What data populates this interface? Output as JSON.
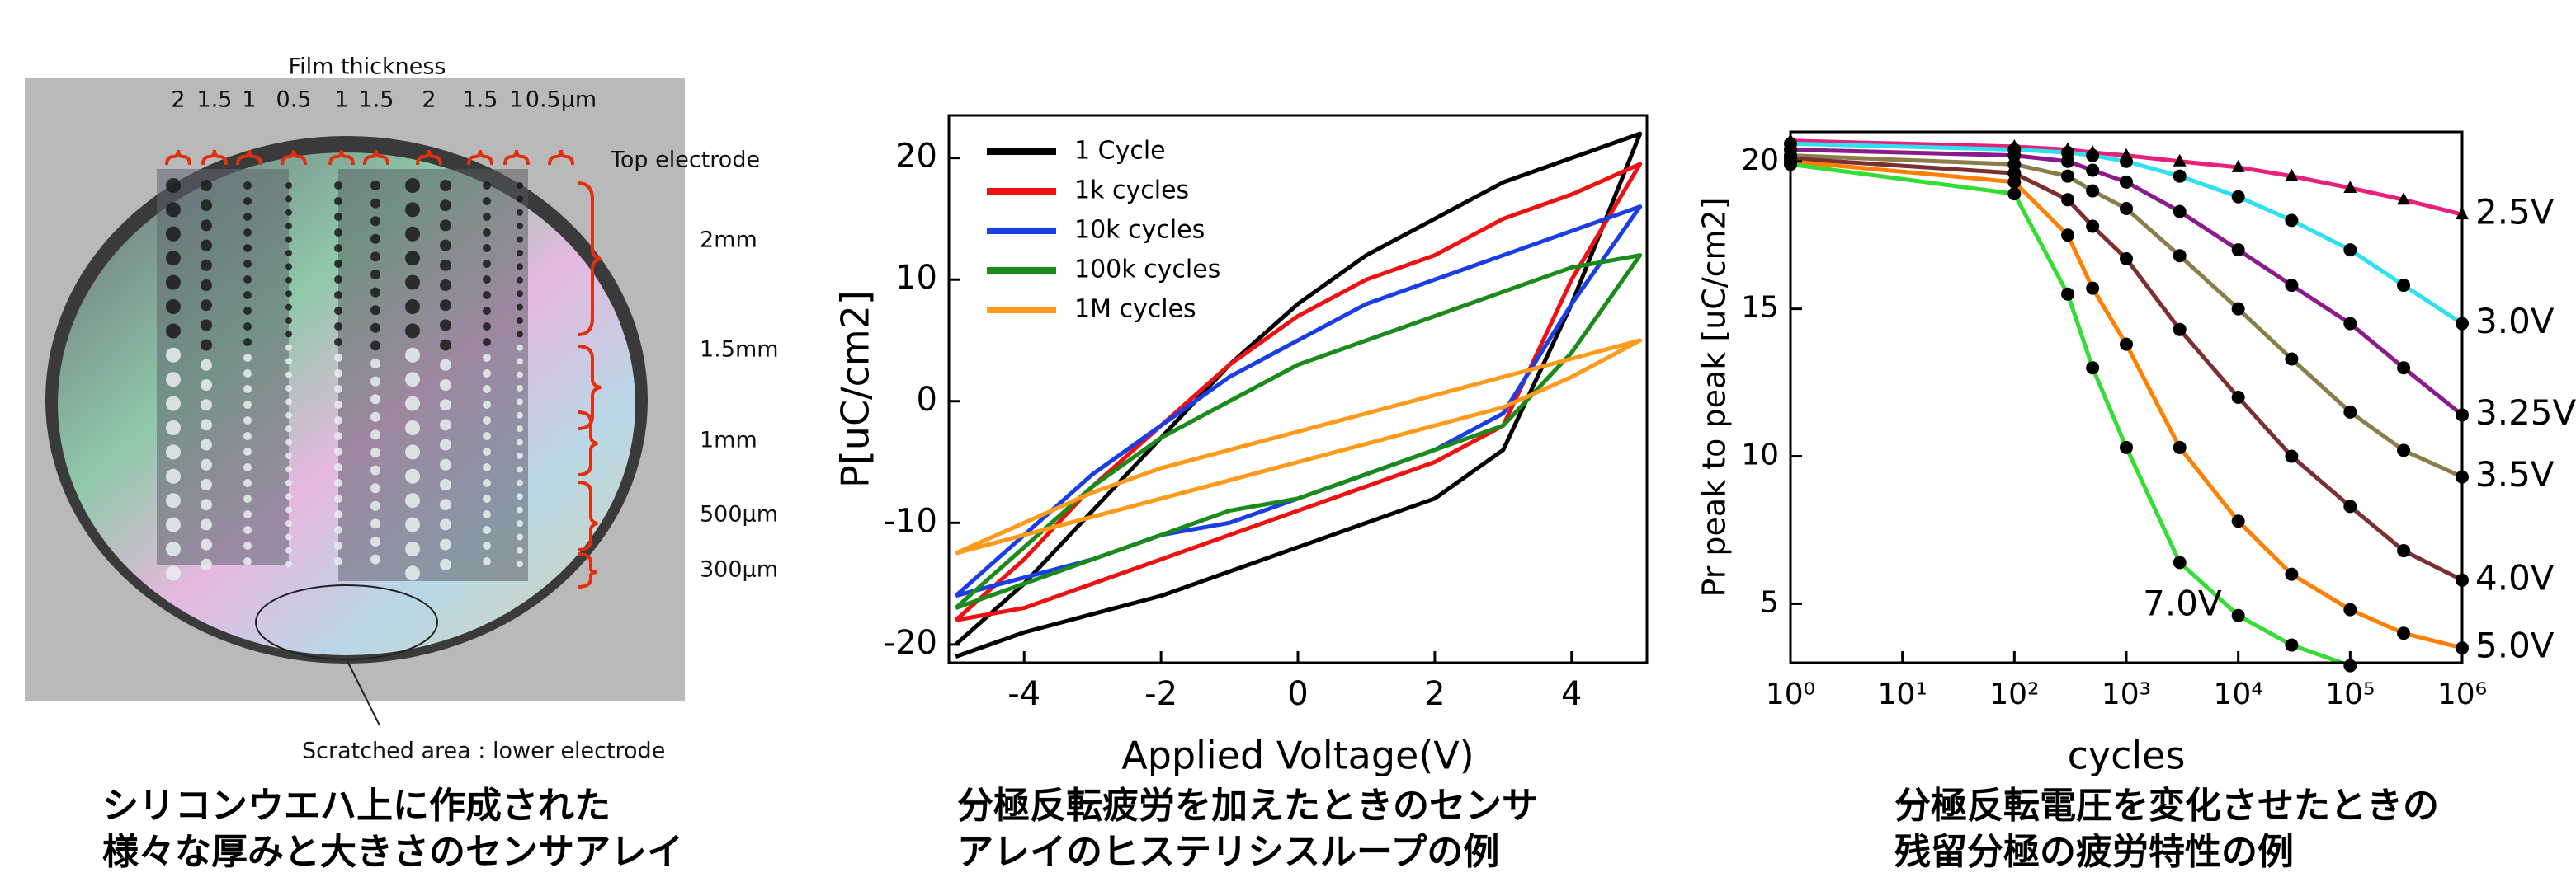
{
  "photo": {
    "title": "Film thickness",
    "thickness_labels": [
      "2",
      "1.5",
      "1",
      "0.5",
      "1",
      "1.5",
      "2",
      "1.5",
      "1",
      "0.5µm"
    ],
    "top_electrode": "Top electrode",
    "size_labels": [
      "2mm",
      "1.5mm",
      "1mm",
      "500µm",
      "300µm"
    ],
    "scratch_note": "Scratched area : lower electrode"
  },
  "chart_data": [
    {
      "type": "line",
      "xlabel": "Applied Voltage(V)",
      "ylabel": "P[uC/cm2]",
      "xlim": [
        -5.1,
        5.1
      ],
      "ylim": [
        -21.5,
        23.5
      ],
      "xticks": [
        -4,
        -2,
        0,
        2,
        4
      ],
      "yticks": [
        -20,
        -10,
        0,
        10,
        20
      ],
      "legend": "upper left",
      "x": [
        -5,
        -4,
        -3,
        -2,
        -1,
        0,
        1,
        2,
        3,
        4,
        5,
        4,
        3,
        2,
        1,
        0,
        -1,
        -2,
        -3,
        -4,
        -5
      ],
      "series": [
        {
          "name": "1 Cycle",
          "color": "#000000",
          "values": [
            -21,
            -19,
            -17.5,
            -16,
            -14,
            -12,
            -10,
            -8,
            -4,
            8,
            22,
            20,
            18,
            15,
            12,
            8,
            3,
            -3,
            -9,
            -15,
            -20
          ]
        },
        {
          "name": "1k  cycles",
          "color": "#ee1111",
          "values": [
            -18,
            -17,
            -15,
            -13,
            -11,
            -9,
            -7,
            -5,
            -2,
            10,
            19.5,
            17,
            15,
            12,
            10,
            7,
            3,
            -2,
            -7,
            -13,
            -18
          ]
        },
        {
          "name": "10k cycles",
          "color": "#1a3ee6",
          "values": [
            -16,
            -14.5,
            -13,
            -11,
            -10,
            -8,
            -6,
            -4,
            -1,
            8,
            16,
            14,
            12,
            10,
            8,
            5,
            2,
            -2,
            -6,
            -11,
            -16
          ]
        },
        {
          "name": "100k cycles",
          "color": "#1a8a1a",
          "values": [
            -17,
            -15,
            -13,
            -11,
            -9,
            -8,
            -6,
            -4,
            -2,
            4,
            12,
            11,
            9,
            7,
            5,
            3,
            0,
            -3,
            -7,
            -12,
            -17
          ]
        },
        {
          "name": "1M cycles",
          "color": "#ff9a1a",
          "values": [
            -12.5,
            -11,
            -9.5,
            -8,
            -6.5,
            -5,
            -3.5,
            -2,
            -0.5,
            2,
            5,
            3.5,
            2,
            0.5,
            -1,
            -2.5,
            -4,
            -5.5,
            -7.5,
            -10,
            -12.5
          ]
        }
      ]
    },
    {
      "type": "line",
      "xlabel": "cycles",
      "ylabel": "Pr peak to peak [uC/cm2]",
      "xscale": "log",
      "xlim": [
        1,
        1000000
      ],
      "ylim": [
        3,
        21
      ],
      "xticks": [
        {
          "value": 1,
          "label": "10⁰"
        },
        {
          "value": 10,
          "label": "10¹"
        },
        {
          "value": 100,
          "label": "10²"
        },
        {
          "value": 1000,
          "label": "10³"
        },
        {
          "value": 10000,
          "label": "10⁴"
        },
        {
          "value": 100000,
          "label": "10⁵"
        },
        {
          "value": 1000000,
          "label": "10⁶"
        }
      ],
      "yticks": [
        5,
        10,
        15,
        20
      ],
      "end_labels": true,
      "series": [
        {
          "name": "2.5V",
          "color": "#e8207a",
          "marker": "triangle",
          "x": [
            1,
            100,
            300,
            500,
            1000,
            3000,
            10000,
            30000,
            100000,
            300000,
            1000000
          ],
          "values": [
            20.7,
            20.5,
            20.4,
            20.3,
            20.2,
            20,
            19.8,
            19.5,
            19.1,
            18.7,
            18.2
          ]
        },
        {
          "name": "3.0V",
          "color": "#2ee0f0",
          "marker": "circle",
          "x": [
            1,
            100,
            300,
            500,
            1000,
            3000,
            10000,
            30000,
            100000,
            300000,
            1000000
          ],
          "values": [
            20.6,
            20.4,
            20.3,
            20.2,
            20,
            19.5,
            18.8,
            18,
            17,
            15.8,
            14.5
          ]
        },
        {
          "name": "3.25V",
          "color": "#8b1a8b",
          "marker": "circle",
          "x": [
            1,
            100,
            300,
            500,
            1000,
            3000,
            10000,
            30000,
            100000,
            300000,
            1000000
          ],
          "values": [
            20.4,
            20.2,
            20,
            19.7,
            19.3,
            18.3,
            17,
            15.8,
            14.5,
            13,
            11.4
          ]
        },
        {
          "name": "3.5V",
          "color": "#8b7d4a",
          "marker": "circle",
          "x": [
            1,
            100,
            300,
            500,
            1000,
            3000,
            10000,
            30000,
            100000,
            300000,
            1000000
          ],
          "values": [
            20.2,
            19.9,
            19.5,
            19,
            18.4,
            16.8,
            15,
            13.3,
            11.5,
            10.2,
            9.3
          ]
        },
        {
          "name": "4.0V",
          "color": "#7a3030",
          "marker": "circle",
          "x": [
            1,
            100,
            300,
            500,
            1000,
            3000,
            10000,
            30000,
            100000,
            300000,
            1000000
          ],
          "values": [
            20.1,
            19.6,
            18.7,
            17.8,
            16.7,
            14.3,
            12,
            10,
            8.3,
            6.8,
            5.8
          ]
        },
        {
          "name": "5.0V",
          "color": "#ff7f00",
          "marker": "circle",
          "x": [
            1,
            100,
            300,
            500,
            1000,
            3000,
            10000,
            30000,
            100000,
            300000,
            1000000
          ],
          "values": [
            20,
            19.3,
            17.5,
            15.7,
            13.8,
            10.3,
            7.8,
            6,
            4.8,
            4,
            3.5
          ]
        },
        {
          "name": "7.0V",
          "color": "#33dd33",
          "marker": "circle",
          "x": [
            1,
            100,
            300,
            500,
            1000,
            3000,
            10000,
            30000,
            100000
          ],
          "values": [
            19.9,
            18.9,
            15.5,
            13,
            10.3,
            6.4,
            4.6,
            3.6,
            2.9
          ]
        }
      ]
    }
  ],
  "captions": [
    [
      "シリコンウエハ上に作成された",
      "様々な厚みと大きさのセンサアレイ"
    ],
    [
      "分極反転疲労を加えたときのセンサ",
      "アレイのヒステリシスループの例"
    ],
    [
      "分極反転電圧を変化させたときの",
      "残留分極の疲労特性の例"
    ]
  ]
}
